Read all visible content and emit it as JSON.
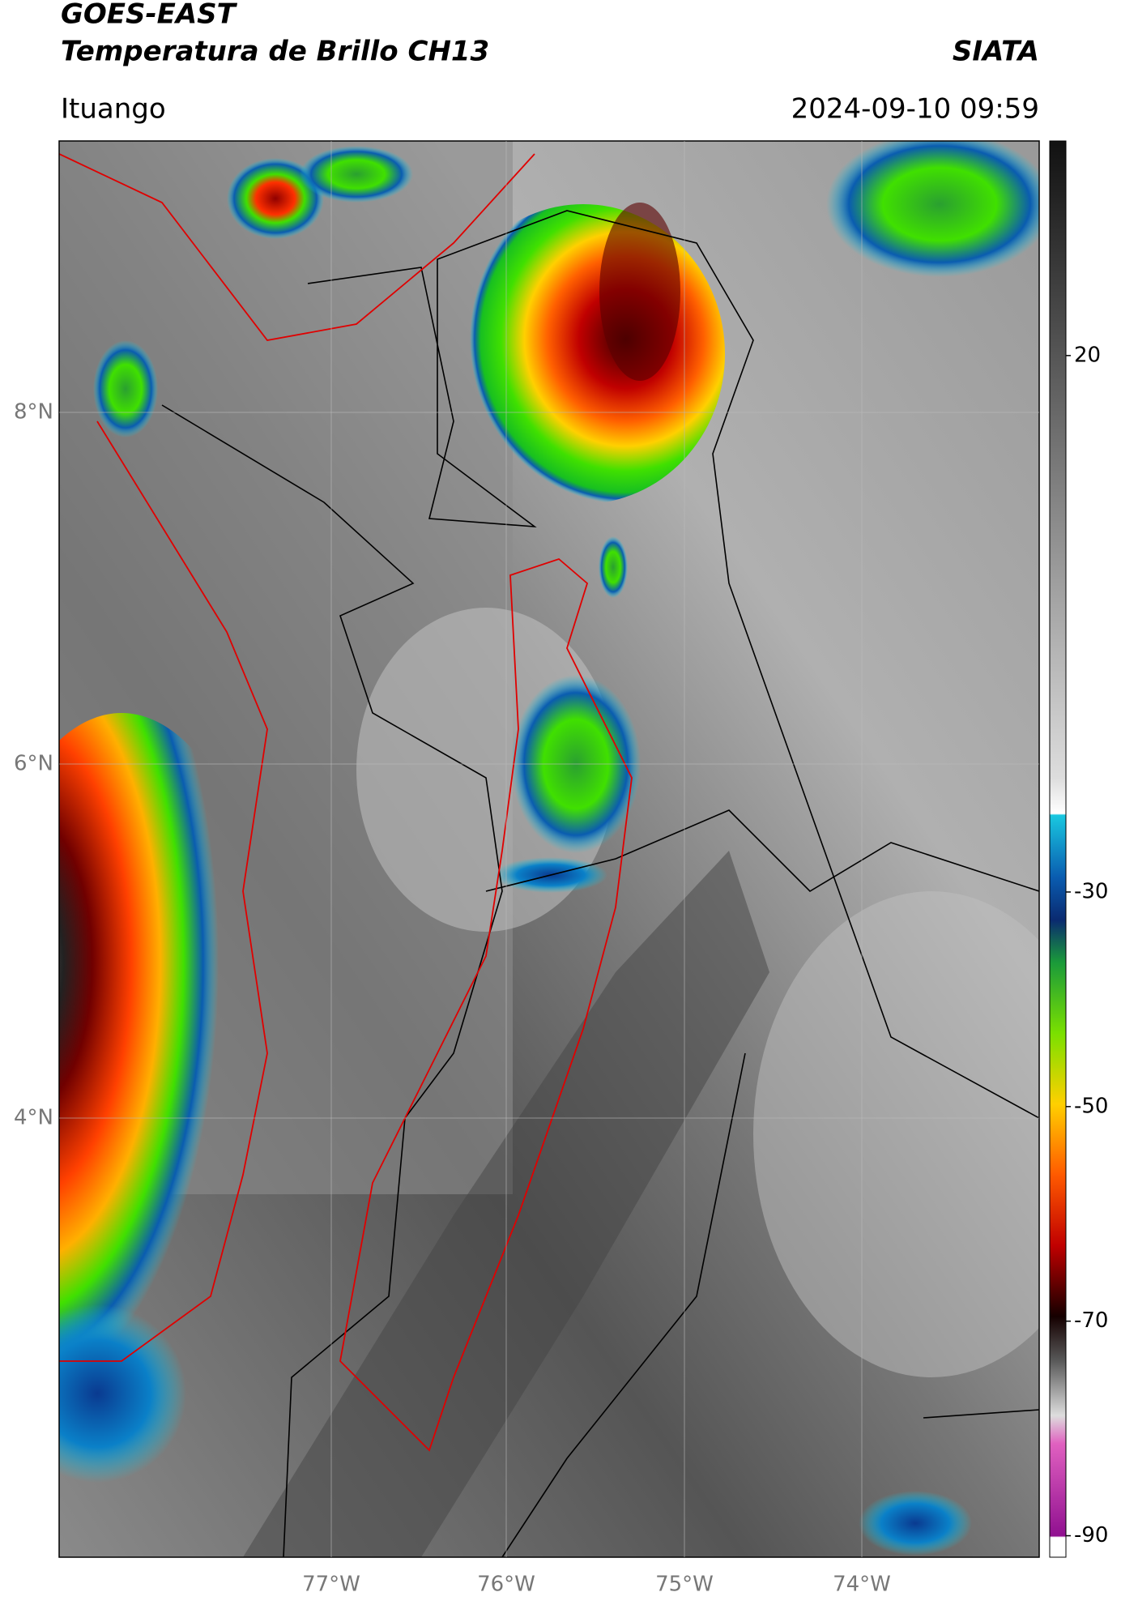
{
  "header": {
    "title": "GOES-EAST",
    "subtitle": "Temperatura de Brillo CH13",
    "source": "SIATA",
    "location": "Ituango",
    "timestamp": "2024-09-10 09:59"
  },
  "map": {
    "lat_labels": [
      "8°N",
      "6°N",
      "4°N"
    ],
    "lon_labels": [
      "77°W",
      "76°W",
      "75°W",
      "74°W"
    ]
  },
  "colorbar": {
    "lim": [
      -92,
      40
    ],
    "ticks": [
      20,
      -30,
      -50,
      -70,
      -90
    ]
  }
}
